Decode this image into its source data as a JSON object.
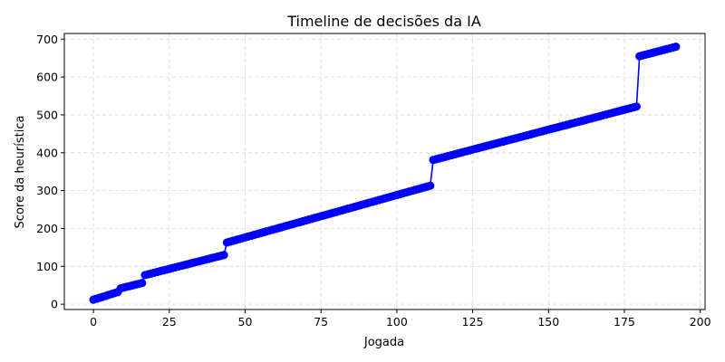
{
  "chart_data": {
    "type": "line",
    "title": "Timeline de decisões da IA",
    "xlabel": "Jogada",
    "ylabel": "Score da heurística",
    "xlim": [
      -9.6,
      201.6
    ],
    "ylim": [
      -14,
      715
    ],
    "xticks": [
      0,
      25,
      50,
      75,
      100,
      125,
      150,
      175,
      200
    ],
    "yticks": [
      0,
      100,
      200,
      300,
      400,
      500,
      600,
      700
    ],
    "grid": true,
    "marker": "circle",
    "color": "#0000ff",
    "segments": [
      {
        "x_start": 0,
        "x_end": 8,
        "y_start": 12,
        "y_end": 32
      },
      {
        "x_start": 9,
        "x_end": 16,
        "y_start": 42,
        "y_end": 56
      },
      {
        "x_start": 17,
        "x_end": 43,
        "y_start": 77,
        "y_end": 130
      },
      {
        "x_start": 44,
        "x_end": 111,
        "y_start": 163,
        "y_end": 313
      },
      {
        "x_start": 112,
        "x_end": 179,
        "y_start": 381,
        "y_end": 522
      },
      {
        "x_start": 180,
        "x_end": 192,
        "y_start": 655,
        "y_end": 680
      }
    ]
  }
}
